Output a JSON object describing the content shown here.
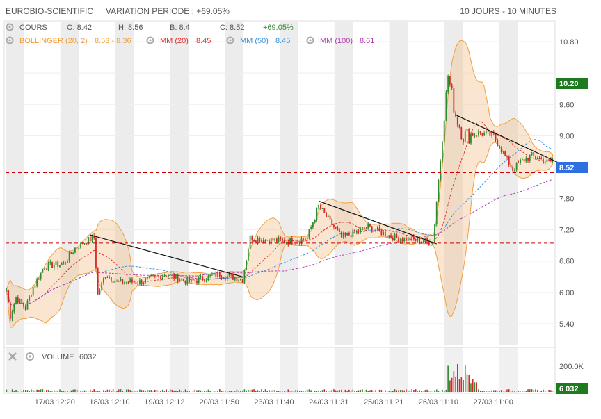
{
  "header": {
    "stock_name": "EUROBIO-SCIENTIFIC",
    "variation": "VARIATION PERIODE : +69.05%",
    "range": "10 JOURS - 10 MINUTES"
  },
  "legend": {
    "cours_label": "COURS",
    "open": "O: 8.42",
    "high": "H: 8.56",
    "low": "B: 8.4",
    "close": "C: 8.52",
    "change": "+69.05%",
    "bollinger_label": "BOLLINGER (20, 2)",
    "bollinger_value": "8.53 - 8.36",
    "mm20_label": "MM (20)",
    "mm20_value": "8.45",
    "mm50_label": "MM (50)",
    "mm50_value": "8.45",
    "mm100_label": "MM (100)",
    "mm100_value": "8.61"
  },
  "volume_panel": {
    "label": "VOLUME",
    "value": "6032",
    "axis_tick": "200.0K",
    "badge": "6 032"
  },
  "badges": {
    "high_tag": "10.20",
    "last_tag": "8.52"
  },
  "colors": {
    "up": "#2e8b2e",
    "down": "#d62728",
    "bollinger": "#f0a040",
    "mm20": "#e03030",
    "mm50": "#3a8fd8",
    "mm100": "#b040b0",
    "support": "#cc0000",
    "last_badge": "#2f6fe0",
    "high_badge": "#1f7a1f"
  },
  "chart_data": {
    "type": "candlestick",
    "price_axis": {
      "ticks": [
        5.4,
        6.0,
        6.6,
        7.2,
        7.8,
        8.4,
        9.0,
        9.6,
        10.2,
        10.8
      ],
      "tick_labels": [
        "5.40",
        "6.00",
        "6.60",
        "7.20",
        "7.80",
        "",
        "9.00",
        "9.60",
        "",
        "10.80"
      ],
      "range": [
        5.0,
        11.2
      ]
    },
    "x_tick_labels": [
      "17/03 12:20",
      "18/03 12:10",
      "19/03 12:12",
      "20/03 11:50",
      "23/03 11:40",
      "24/03 11:31",
      "25/03 11:21",
      "26/03 11:10",
      "27/03 11:00"
    ],
    "days": 10,
    "anchors": [
      [
        0,
        6.05
      ],
      [
        2,
        5.55
      ],
      [
        5,
        5.9
      ],
      [
        10,
        5.7
      ],
      [
        14,
        6.1
      ],
      [
        20,
        6.5
      ],
      [
        30,
        6.55
      ],
      [
        36,
        6.85
      ],
      [
        40,
        6.95
      ],
      [
        46,
        7.05
      ],
      [
        48,
        5.95
      ],
      [
        52,
        6.35
      ],
      [
        58,
        6.2
      ],
      [
        70,
        6.2
      ],
      [
        84,
        6.35
      ],
      [
        96,
        6.2
      ],
      [
        112,
        6.35
      ],
      [
        124,
        6.25
      ],
      [
        128,
        7.05
      ],
      [
        138,
        7.0
      ],
      [
        152,
        6.98
      ],
      [
        158,
        7.05
      ],
      [
        164,
        7.65
      ],
      [
        170,
        7.35
      ],
      [
        176,
        7.05
      ],
      [
        190,
        7.25
      ],
      [
        204,
        7.05
      ],
      [
        216,
        7.0
      ],
      [
        224,
        6.95
      ],
      [
        232,
        10.15
      ],
      [
        236,
        9.4
      ],
      [
        240,
        9.0
      ],
      [
        248,
        9.05
      ],
      [
        256,
        9.0
      ],
      [
        262,
        8.6
      ],
      [
        266,
        8.35
      ],
      [
        270,
        8.5
      ],
      [
        276,
        8.62
      ],
      [
        284,
        8.5
      ],
      [
        287,
        8.52
      ]
    ],
    "support_levels": [
      6.95,
      8.3
    ],
    "trendlines": [
      {
        "from": {
          "bar": 44,
          "price": 7.1
        },
        "to": {
          "bar": 124,
          "price": 6.3
        }
      },
      {
        "from": {
          "bar": 164,
          "price": 7.75
        },
        "to": {
          "bar": 226,
          "price": 6.93
        }
      },
      {
        "from": {
          "bar": 236,
          "price": 9.4
        },
        "to": {
          "bar": 292,
          "price": 8.45
        }
      }
    ]
  }
}
